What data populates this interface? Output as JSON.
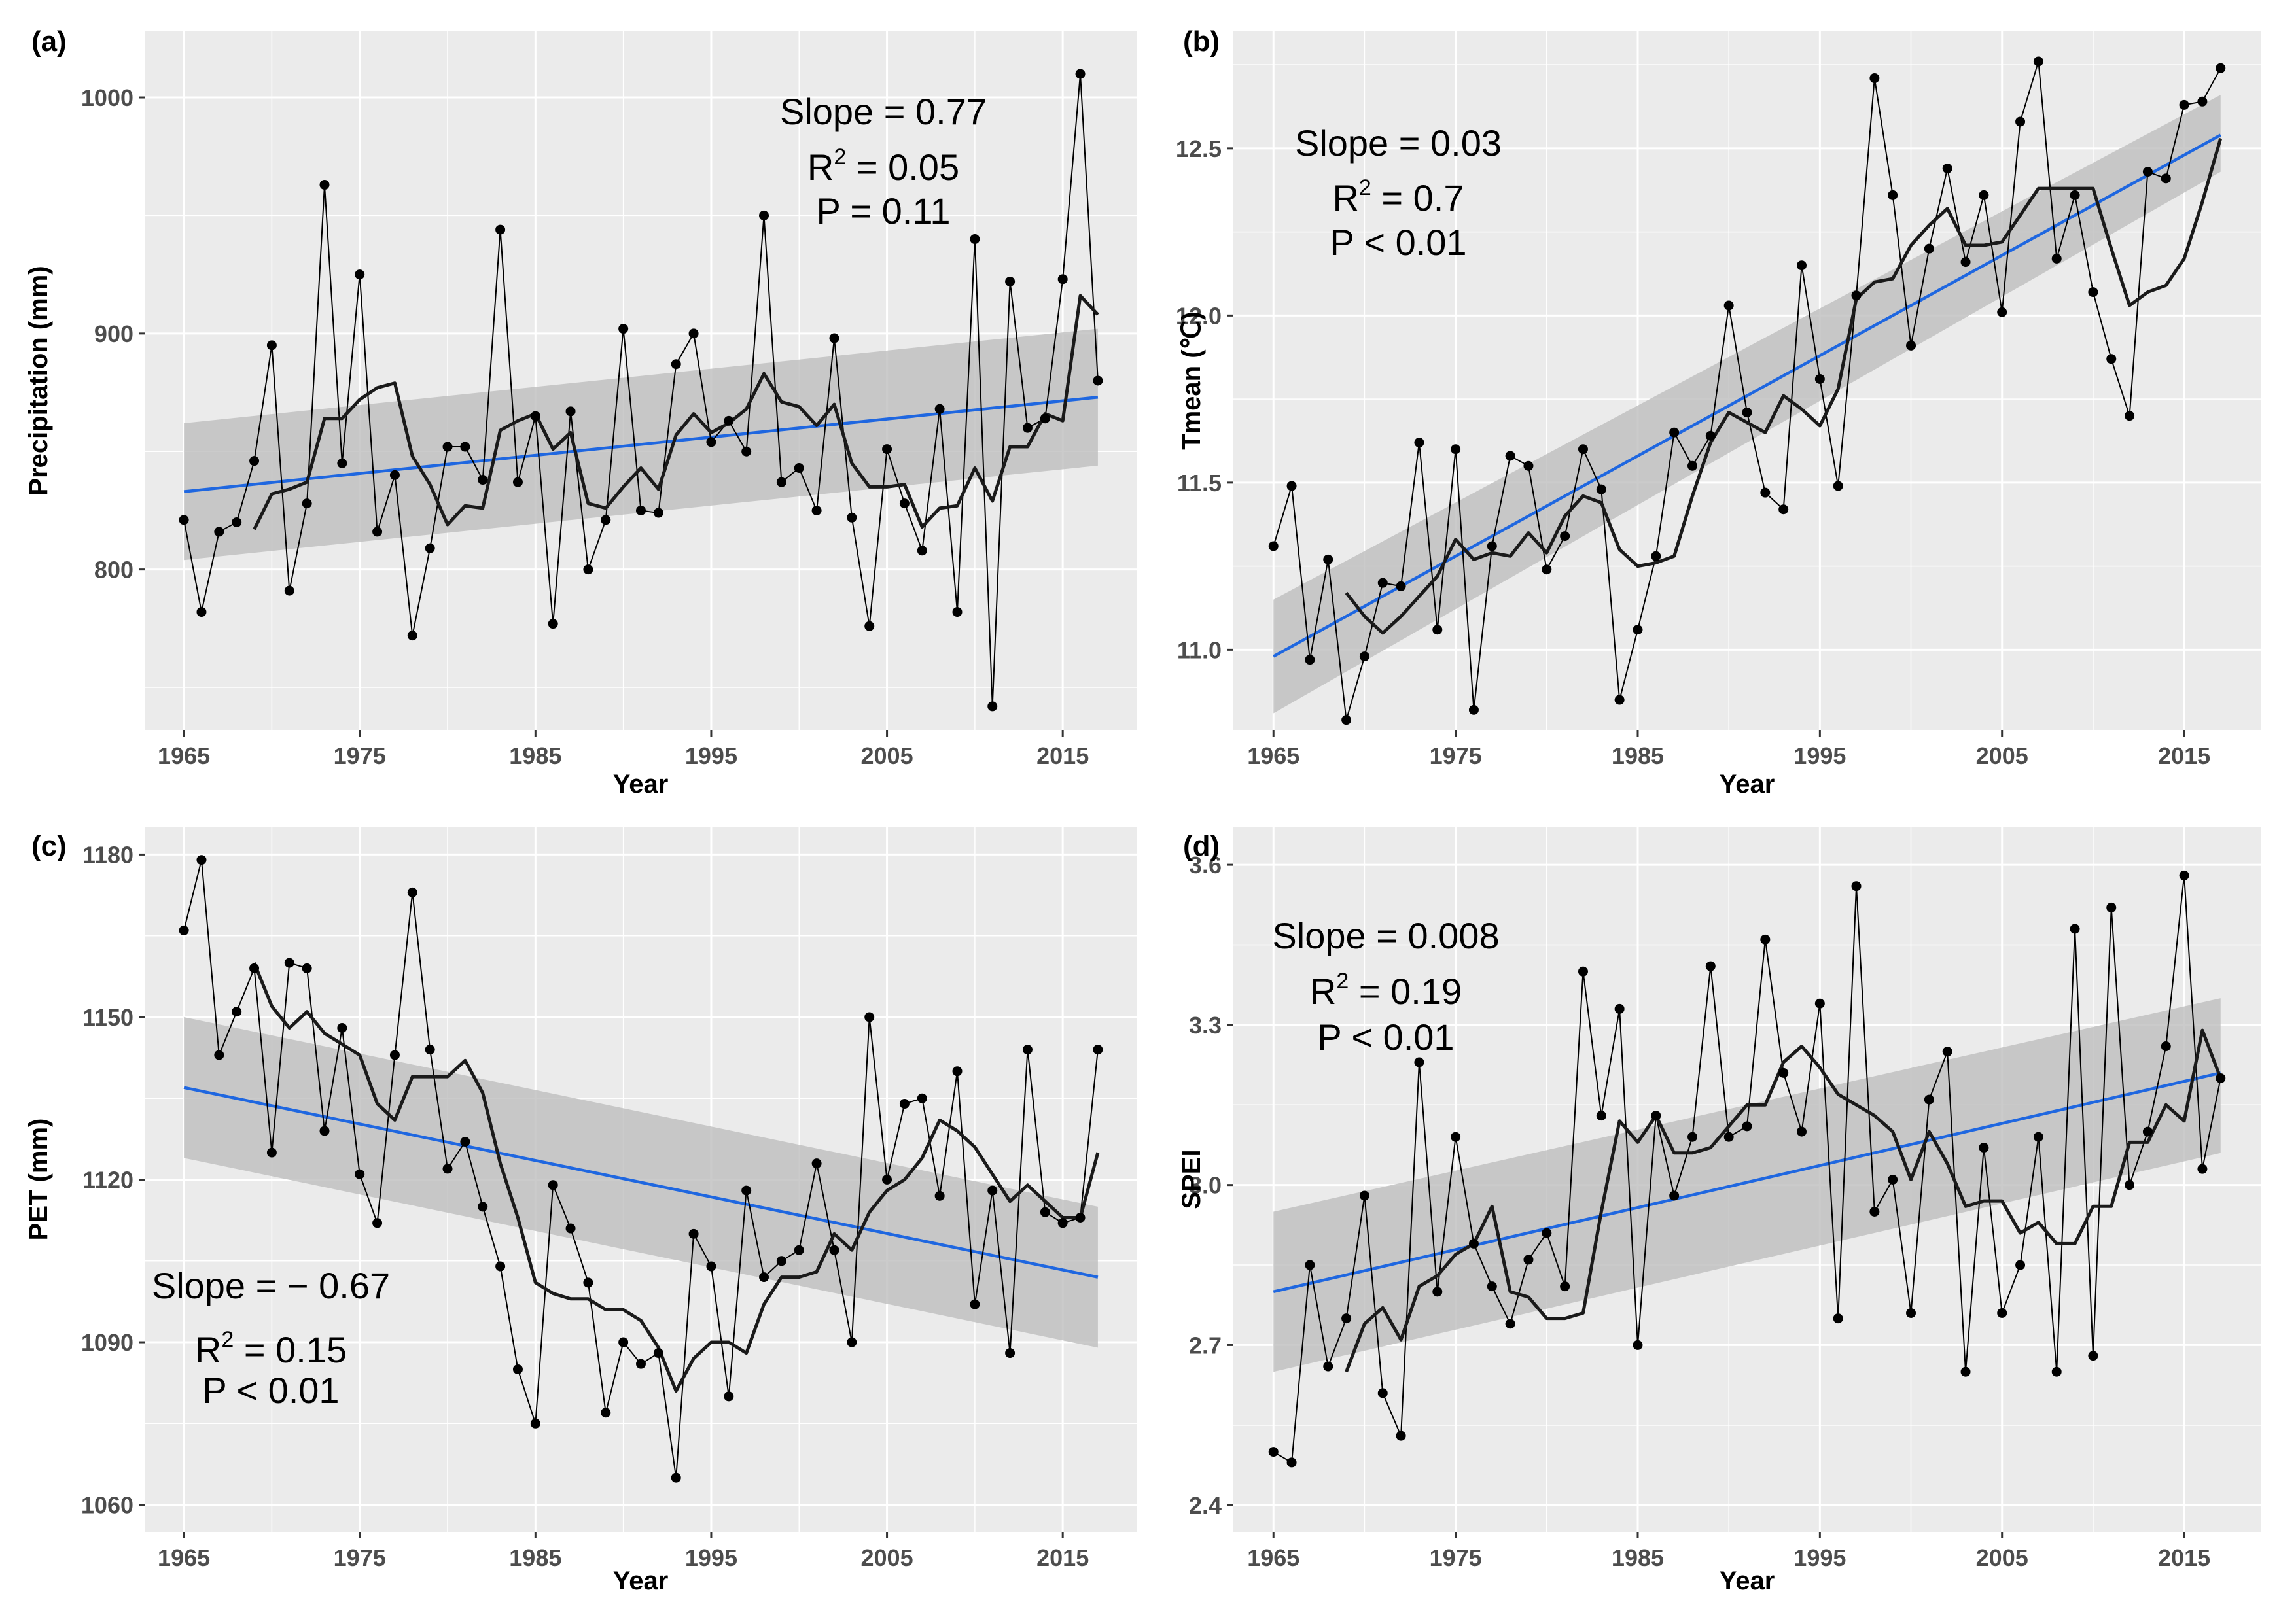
{
  "chart_data": [
    {
      "panel": "(a)",
      "type": "line",
      "xlabel": "Year",
      "ylabel": "Precipitation (mm)",
      "xlim": [
        1962.8,
        2019.2
      ],
      "ylim": [
        732,
        1028
      ],
      "xticks": [
        1965,
        1975,
        1985,
        1995,
        2005,
        2015
      ],
      "yticks": [
        800,
        900,
        1000
      ],
      "annotations": {
        "slope": "Slope = 0.77",
        "r2_prefix": "R",
        "r2_sup": "2",
        "r2_value": " = 0.05",
        "p": "P = 0.11"
      },
      "years": [
        1965,
        1966,
        1967,
        1968,
        1969,
        1970,
        1971,
        1972,
        1973,
        1974,
        1975,
        1976,
        1977,
        1978,
        1979,
        1980,
        1981,
        1982,
        1983,
        1984,
        1985,
        1986,
        1987,
        1988,
        1989,
        1990,
        1991,
        1992,
        1993,
        1994,
        1995,
        1996,
        1997,
        1998,
        1999,
        2000,
        2001,
        2002,
        2003,
        2004,
        2005,
        2006,
        2007,
        2008,
        2009,
        2010,
        2011,
        2012,
        2013,
        2014,
        2015,
        2016,
        2017
      ],
      "values": [
        821,
        782,
        816,
        820,
        846,
        895,
        791,
        828,
        963,
        845,
        925,
        816,
        840,
        772,
        809,
        852,
        852,
        838,
        944,
        837,
        865,
        777,
        867,
        800,
        821,
        902,
        825,
        824,
        887,
        900,
        854,
        863,
        850,
        950,
        837,
        843,
        825,
        898,
        822,
        776,
        851,
        828,
        808,
        868,
        782,
        940,
        742,
        922,
        860,
        864,
        923,
        1010,
        880
      ],
      "moving_avg_years": [
        1969,
        1970,
        1971,
        1972,
        1973,
        1974,
        1975,
        1976,
        1977,
        1978,
        1979,
        1980,
        1981,
        1982,
        1983,
        1984,
        1985,
        1986,
        1987,
        1988,
        1989,
        1990,
        1991,
        1992,
        1993,
        1994,
        1995,
        1996,
        1997,
        1998,
        1999,
        2000,
        2001,
        2002,
        2003,
        2004,
        2005,
        2006,
        2007,
        2008,
        2009,
        2010,
        2011,
        2012,
        2013,
        2014,
        2015,
        2016,
        2017
      ],
      "moving_avg": [
        817,
        832,
        834,
        837,
        864,
        864,
        872,
        877,
        879,
        848,
        836,
        819,
        827,
        826,
        859,
        863,
        866,
        851,
        858,
        828,
        826,
        835,
        843,
        834,
        857,
        866,
        858,
        862,
        868,
        883,
        871,
        869,
        861,
        870,
        845,
        835,
        835,
        836,
        818,
        826,
        827,
        843,
        829,
        852,
        852,
        866,
        863,
        916,
        908
      ],
      "trend": {
        "start": [
          1965,
          833
        ],
        "end": [
          2017,
          873
        ],
        "band_start": [
          804,
          862
        ],
        "band_end": [
          844,
          902
        ]
      }
    },
    {
      "panel": "(b)",
      "type": "line",
      "xlabel": "Year",
      "ylabel": "Tmean (℃)",
      "xlim": [
        1962.8,
        2019.2
      ],
      "ylim": [
        10.76,
        12.85
      ],
      "xticks": [
        1965,
        1975,
        1985,
        1995,
        2005,
        2015
      ],
      "yticks": [
        11.0,
        11.5,
        12.0,
        12.5
      ],
      "annotations": {
        "slope": "Slope = 0.03",
        "r2_prefix": "R",
        "r2_sup": "2",
        "r2_value": " = 0.7",
        "p": "P < 0.01"
      },
      "years": [
        1965,
        1966,
        1967,
        1968,
        1969,
        1970,
        1971,
        1972,
        1973,
        1974,
        1975,
        1976,
        1977,
        1978,
        1979,
        1980,
        1981,
        1982,
        1983,
        1984,
        1985,
        1986,
        1987,
        1988,
        1989,
        1990,
        1991,
        1992,
        1993,
        1994,
        1995,
        1996,
        1997,
        1998,
        1999,
        2000,
        2001,
        2002,
        2003,
        2004,
        2005,
        2006,
        2007,
        2008,
        2009,
        2010,
        2011,
        2012,
        2013,
        2014,
        2015,
        2016,
        2017
      ],
      "values": [
        11.31,
        11.49,
        10.97,
        11.27,
        10.79,
        10.98,
        11.2,
        11.19,
        11.62,
        11.06,
        11.6,
        10.82,
        11.31,
        11.58,
        11.55,
        11.24,
        11.34,
        11.6,
        11.48,
        10.85,
        11.06,
        11.28,
        11.65,
        11.55,
        11.64,
        12.03,
        11.71,
        11.47,
        11.42,
        12.15,
        11.81,
        11.49,
        12.06,
        12.71,
        12.36,
        11.91,
        12.2,
        12.44,
        12.16,
        12.36,
        12.01,
        12.58,
        12.76,
        12.17,
        12.36,
        12.07,
        11.87,
        11.7,
        12.43,
        12.41,
        12.63,
        12.64,
        12.74
      ],
      "moving_avg_years": [
        1969,
        1970,
        1971,
        1972,
        1973,
        1974,
        1975,
        1976,
        1977,
        1978,
        1979,
        1980,
        1981,
        1982,
        1983,
        1984,
        1985,
        1986,
        1987,
        1988,
        1989,
        1990,
        1991,
        1992,
        1993,
        1994,
        1995,
        1996,
        1997,
        1998,
        1999,
        2000,
        2001,
        2002,
        2003,
        2004,
        2005,
        2006,
        2007,
        2008,
        2009,
        2010,
        2011,
        2012,
        2013,
        2014,
        2015,
        2016,
        2017
      ],
      "moving_avg": [
        11.17,
        11.1,
        11.05,
        11.1,
        11.16,
        11.22,
        11.33,
        11.27,
        11.29,
        11.28,
        11.35,
        11.29,
        11.4,
        11.46,
        11.44,
        11.3,
        11.25,
        11.26,
        11.28,
        11.46,
        11.62,
        11.71,
        11.68,
        11.65,
        11.76,
        11.72,
        11.67,
        11.78,
        12.05,
        12.1,
        12.11,
        12.21,
        12.27,
        12.32,
        12.21,
        12.21,
        12.22,
        12.3,
        12.38,
        12.38,
        12.38,
        12.38,
        12.2,
        12.03,
        12.07,
        12.09,
        12.17,
        12.34,
        12.53
      ],
      "trend": {
        "start": [
          1965,
          10.98
        ],
        "end": [
          2017,
          12.54
        ],
        "band_start": [
          10.81,
          11.15
        ],
        "band_end": [
          12.43,
          12.66
        ]
      }
    },
    {
      "panel": "(c)",
      "type": "line",
      "xlabel": "Year",
      "ylabel": "PET (mm)",
      "xlim": [
        1962.8,
        2019.2
      ],
      "ylim": [
        1055,
        1185
      ],
      "xticks": [
        1965,
        1975,
        1985,
        1995,
        2005,
        2015
      ],
      "yticks": [
        1060,
        1090,
        1120,
        1150,
        1180
      ],
      "annotations": {
        "slope": "Slope = − 0.67",
        "r2_prefix": "R",
        "r2_sup": "2",
        "r2_value": " = 0.15",
        "p": "P < 0.01"
      },
      "years": [
        1965,
        1966,
        1967,
        1968,
        1969,
        1970,
        1971,
        1972,
        1973,
        1974,
        1975,
        1976,
        1977,
        1978,
        1979,
        1980,
        1981,
        1982,
        1983,
        1984,
        1985,
        1986,
        1987,
        1988,
        1989,
        1990,
        1991,
        1992,
        1993,
        1994,
        1995,
        1996,
        1997,
        1998,
        1999,
        2000,
        2001,
        2002,
        2003,
        2004,
        2005,
        2006,
        2007,
        2008,
        2009,
        2010,
        2011,
        2012,
        2013,
        2014,
        2015,
        2016,
        2017
      ],
      "values": [
        1166,
        1179,
        1143,
        1151,
        1159,
        1125,
        1160,
        1159,
        1129,
        1148,
        1121,
        1112,
        1143,
        1173,
        1144,
        1122,
        1127,
        1115,
        1104,
        1085,
        1075,
        1119,
        1111,
        1101,
        1077,
        1090,
        1086,
        1088,
        1065,
        1110,
        1104,
        1080,
        1118,
        1102,
        1105,
        1107,
        1123,
        1107,
        1090,
        1150,
        1120,
        1134,
        1135,
        1117,
        1140,
        1097,
        1118,
        1088,
        1144,
        1114,
        1112,
        1113,
        1144
      ],
      "moving_avg_years": [
        1969,
        1970,
        1971,
        1972,
        1973,
        1974,
        1975,
        1976,
        1977,
        1978,
        1979,
        1980,
        1981,
        1982,
        1983,
        1984,
        1985,
        1986,
        1987,
        1988,
        1989,
        1990,
        1991,
        1992,
        1993,
        1994,
        1995,
        1996,
        1997,
        1998,
        1999,
        2000,
        2001,
        2002,
        2003,
        2004,
        2005,
        2006,
        2007,
        2008,
        2009,
        2010,
        2011,
        2012,
        2013,
        2014,
        2015,
        2016,
        2017
      ],
      "moving_avg": [
        1160,
        1152,
        1148,
        1151,
        1147,
        1145,
        1143,
        1134,
        1131,
        1139,
        1139,
        1139,
        1142,
        1136,
        1123,
        1113,
        1101,
        1099,
        1098,
        1098,
        1096,
        1096,
        1094,
        1089,
        1081,
        1087,
        1090,
        1090,
        1088,
        1097,
        1102,
        1102,
        1103,
        1110,
        1107,
        1114,
        1118,
        1120,
        1124,
        1131,
        1129,
        1126,
        1121,
        1116,
        1119,
        1116,
        1113,
        1113,
        1125
      ],
      "trend": {
        "start": [
          1965,
          1137
        ],
        "end": [
          2017,
          1102
        ],
        "band_start": [
          1124,
          1150
        ],
        "band_end": [
          1089,
          1115
        ]
      }
    },
    {
      "panel": "(d)",
      "type": "line",
      "xlabel": "Year",
      "ylabel": "SPEI",
      "xlim": [
        1962.8,
        2019.2
      ],
      "ylim": [
        2.35,
        3.67
      ],
      "xticks": [
        1965,
        1975,
        1985,
        1995,
        2005,
        2015
      ],
      "yticks": [
        2.4,
        2.7,
        3.0,
        3.3,
        3.6
      ],
      "annotations": {
        "slope": "Slope = 0.008",
        "r2_prefix": "R",
        "r2_sup": "2",
        "r2_value": " = 0.19",
        "p": "P < 0.01"
      },
      "years": [
        1965,
        1966,
        1967,
        1968,
        1969,
        1970,
        1971,
        1972,
        1973,
        1974,
        1975,
        1976,
        1977,
        1978,
        1979,
        1980,
        1981,
        1982,
        1983,
        1984,
        1985,
        1986,
        1987,
        1988,
        1989,
        1990,
        1991,
        1992,
        1993,
        1994,
        1995,
        1996,
        1997,
        1998,
        1999,
        2000,
        2001,
        2002,
        2003,
        2004,
        2005,
        2006,
        2007,
        2008,
        2009,
        2010,
        2011,
        2012,
        2013,
        2014,
        2015,
        2016,
        2017
      ],
      "values": [
        2.5,
        2.48,
        2.85,
        2.66,
        2.75,
        2.98,
        2.61,
        2.53,
        3.23,
        2.8,
        3.09,
        2.89,
        2.81,
        2.74,
        2.86,
        2.91,
        2.81,
        3.4,
        3.13,
        3.33,
        2.7,
        3.13,
        2.98,
        3.09,
        3.41,
        3.09,
        3.11,
        3.46,
        3.21,
        3.1,
        3.34,
        2.75,
        3.56,
        2.95,
        3.01,
        2.76,
        3.16,
        3.25,
        2.65,
        3.07,
        2.76,
        2.85,
        3.09,
        2.65,
        3.48,
        2.68,
        3.52,
        3.0,
        3.1,
        3.26,
        3.58,
        3.03,
        3.2
      ],
      "moving_avg_years": [
        1969,
        1970,
        1971,
        1972,
        1973,
        1974,
        1975,
        1976,
        1977,
        1978,
        1979,
        1980,
        1981,
        1982,
        1983,
        1984,
        1985,
        1986,
        1987,
        1988,
        1989,
        1990,
        1991,
        1992,
        1993,
        1994,
        1995,
        1996,
        1997,
        1998,
        1999,
        2000,
        2001,
        2002,
        2003,
        2004,
        2005,
        2006,
        2007,
        2008,
        2009,
        2010,
        2011,
        2012,
        2013,
        2014,
        2015,
        2016,
        2017
      ],
      "moving_avg": [
        2.65,
        2.74,
        2.77,
        2.71,
        2.81,
        2.83,
        2.87,
        2.89,
        2.96,
        2.8,
        2.79,
        2.75,
        2.75,
        2.76,
        2.95,
        3.12,
        3.08,
        3.13,
        3.06,
        3.06,
        3.07,
        3.11,
        3.15,
        3.15,
        3.23,
        3.26,
        3.22,
        3.17,
        3.15,
        3.13,
        3.1,
        3.01,
        3.1,
        3.04,
        2.96,
        2.97,
        2.97,
        2.91,
        2.93,
        2.89,
        2.89,
        2.96,
        2.96,
        3.08,
        3.08,
        3.15,
        3.12,
        3.29,
        3.2
      ],
      "trend": {
        "start": [
          1965,
          2.8
        ],
        "end": [
          2017,
          3.21
        ],
        "band_start": [
          2.65,
          2.95
        ],
        "band_end": [
          3.06,
          3.35
        ]
      }
    }
  ],
  "colors": {
    "panel_bg": "#ebebeb",
    "grid": "#ffffff",
    "trend_line": "#1f67e0",
    "ci_band": "#bebebe",
    "series": "#000000",
    "moving_avg": "#1a1a1a",
    "tick_text": "#4d4d4d"
  }
}
